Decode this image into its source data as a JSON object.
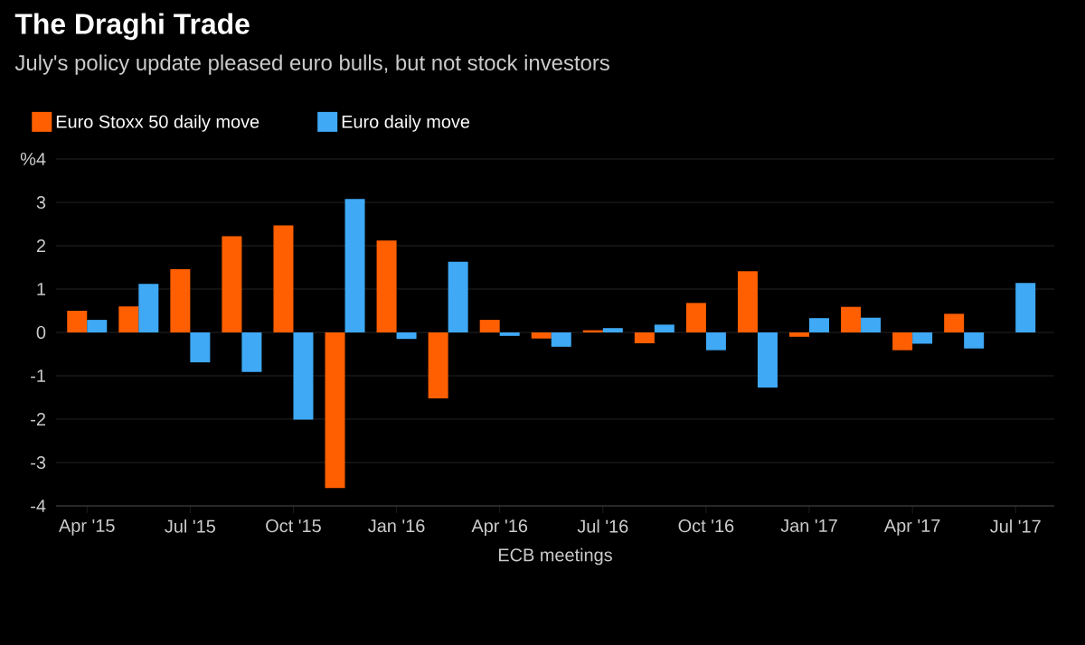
{
  "chart_data": {
    "type": "bar",
    "title": "The Draghi Trade",
    "subtitle": "July's policy update pleased euro bulls, but not stock investors",
    "xlabel": "ECB meetings",
    "categories": [
      "Apr '15",
      null,
      "Jul '15",
      null,
      "Oct '15",
      null,
      "Jan '16",
      null,
      "Apr '16",
      null,
      "Jul '16",
      null,
      "Oct '16",
      null,
      "Jan '17",
      null,
      "Apr '17",
      null,
      "Jul '17"
    ],
    "series": [
      {
        "name": "Euro Stoxx 50 daily move",
        "color": "#ff5f00",
        "values": [
          0.5,
          0.6,
          1.46,
          2.22,
          2.47,
          -3.59,
          2.12,
          -1.52,
          0.29,
          -0.14,
          0.05,
          -0.25,
          0.68,
          1.41,
          -0.1,
          0.59,
          -0.41,
          0.43,
          null
        ]
      },
      {
        "name": "Euro daily move",
        "color": "#3fa9f5",
        "values": [
          0.29,
          1.12,
          -0.69,
          -0.91,
          -2.01,
          3.08,
          -0.15,
          1.63,
          -0.08,
          -0.33,
          0.1,
          0.18,
          -0.41,
          -1.27,
          0.33,
          0.34,
          -0.26,
          -0.37,
          1.14
        ]
      }
    ],
    "ylim": [
      -4,
      4
    ],
    "yticks": [
      -4,
      -3,
      -2,
      -1,
      0,
      1,
      2,
      3,
      {
        "value": 4,
        "label": "%4"
      }
    ],
    "grid": "y",
    "legend": "top left"
  }
}
